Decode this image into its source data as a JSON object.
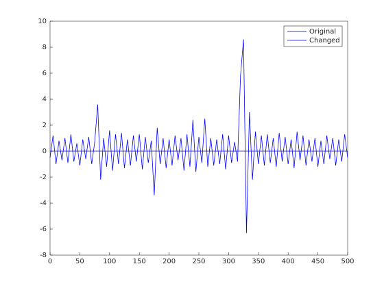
{
  "chart_data": {
    "type": "line",
    "xlim": [
      0,
      500
    ],
    "xticks": [
      0,
      50,
      100,
      150,
      200,
      250,
      300,
      350,
      400,
      450,
      500
    ],
    "ylim": [
      -8,
      10
    ],
    "yticks": [
      -8,
      -6,
      -4,
      -2,
      0,
      2,
      4,
      6,
      8,
      10
    ],
    "legend": "top-right",
    "series": [
      {
        "name": "Original",
        "color": "#00007f",
        "x": [
          0,
          500
        ],
        "values": [
          0,
          0
        ]
      },
      {
        "name": "Changed",
        "color": "#0000ff",
        "x": [
          0,
          5,
          10,
          15,
          20,
          25,
          30,
          35,
          40,
          45,
          50,
          55,
          60,
          65,
          70,
          75,
          80,
          85,
          90,
          95,
          100,
          105,
          110,
          115,
          120,
          125,
          130,
          135,
          140,
          145,
          150,
          155,
          160,
          165,
          170,
          175,
          180,
          185,
          190,
          195,
          200,
          205,
          210,
          215,
          220,
          225,
          230,
          235,
          240,
          245,
          250,
          255,
          260,
          265,
          270,
          275,
          280,
          285,
          290,
          295,
          300,
          305,
          310,
          315,
          320,
          325,
          330,
          335,
          340,
          345,
          350,
          355,
          360,
          365,
          370,
          375,
          380,
          385,
          390,
          395,
          400,
          405,
          410,
          415,
          420,
          425,
          430,
          435,
          440,
          445,
          450,
          455,
          460,
          465,
          470,
          475,
          480,
          485,
          490,
          495,
          500
        ],
        "values": [
          -0.5,
          1.2,
          -1.0,
          0.8,
          -0.7,
          1.0,
          -0.9,
          1.3,
          -0.8,
          0.6,
          -1.1,
          0.9,
          -0.6,
          1.1,
          -1.0,
          0.7,
          3.6,
          -2.2,
          1.0,
          -1.2,
          1.6,
          -1.5,
          1.3,
          -1.0,
          1.4,
          -1.3,
          0.9,
          -1.1,
          1.2,
          -0.8,
          1.3,
          -1.4,
          1.1,
          -0.9,
          0.8,
          -3.4,
          1.8,
          -1.0,
          1.0,
          -1.3,
          0.9,
          -1.1,
          1.2,
          -0.7,
          1.0,
          -1.5,
          1.3,
          -1.2,
          2.4,
          -1.6,
          1.1,
          -0.9,
          2.5,
          -1.2,
          1.0,
          -1.1,
          0.9,
          -1.0,
          1.3,
          -1.4,
          1.2,
          -0.9,
          0.7,
          -0.8,
          5.8,
          8.6,
          -6.3,
          3.0,
          -2.2,
          1.5,
          -1.0,
          1.2,
          -1.1,
          1.3,
          -0.9,
          1.0,
          -1.2,
          1.4,
          -0.8,
          1.1,
          -1.0,
          0.9,
          -1.3,
          1.5,
          -0.7,
          1.2,
          -1.1,
          0.9,
          -0.8,
          1.0,
          -1.2,
          0.8,
          -1.0,
          1.2,
          -0.6,
          1.0,
          -1.1,
          0.9,
          -0.8,
          1.3,
          -0.5
        ]
      }
    ]
  }
}
